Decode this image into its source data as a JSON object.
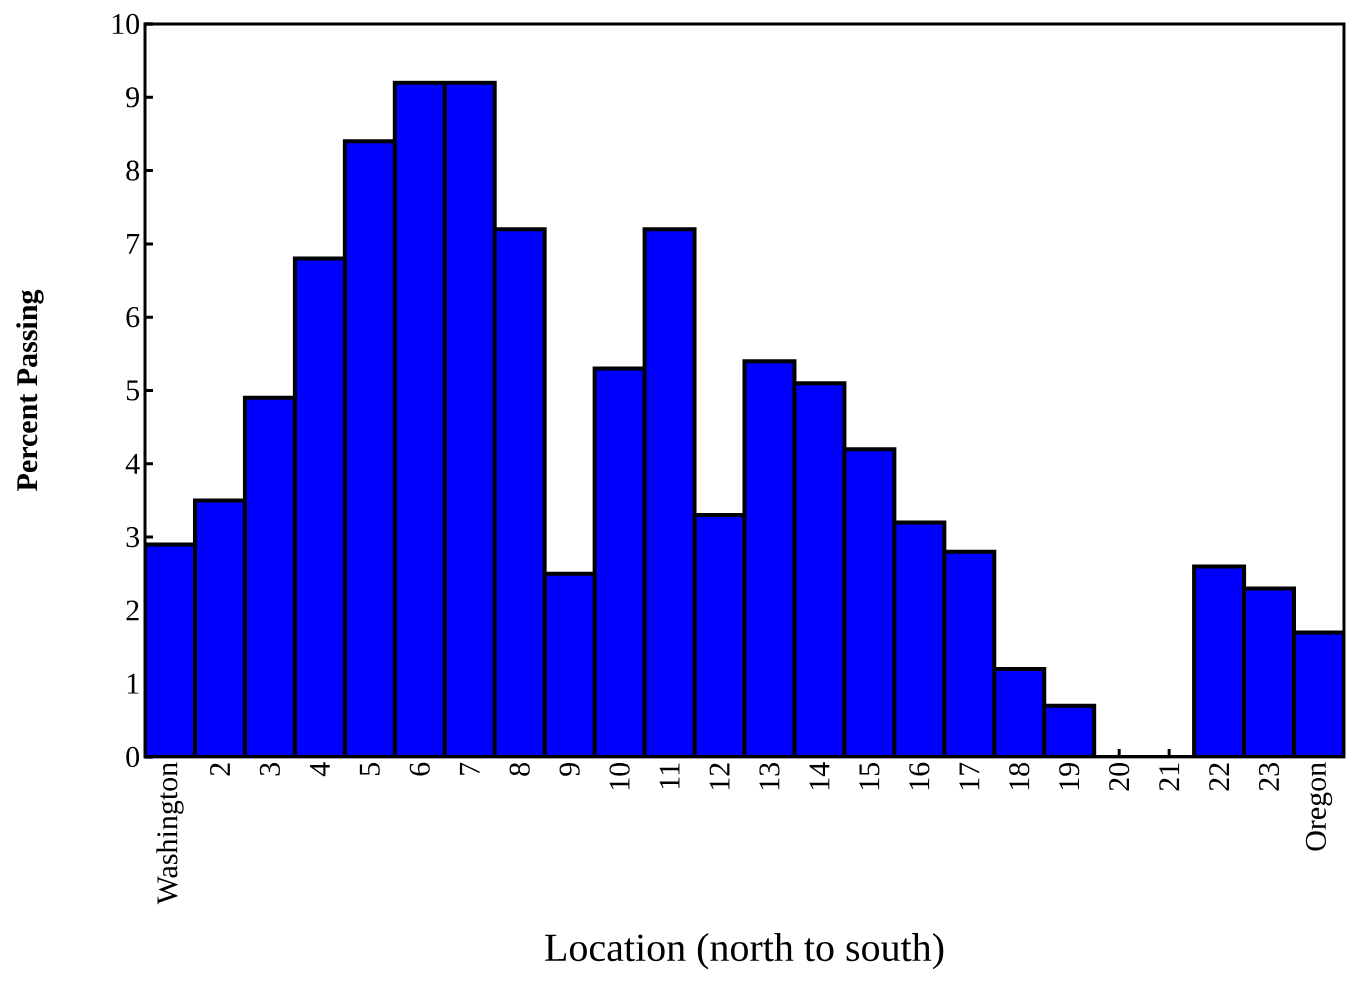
{
  "chart_data": {
    "type": "bar",
    "xlabel": "Location (north to south)",
    "ylabel": "Percent Passing",
    "categories": [
      "Washington",
      "2",
      "3",
      "4",
      "5",
      "6",
      "7",
      "8",
      "9",
      "10",
      "11",
      "12",
      "13",
      "14",
      "15",
      "16",
      "17",
      "18",
      "19",
      "20",
      "21",
      "22",
      "23",
      "Oregon"
    ],
    "values": [
      2.9,
      3.5,
      4.9,
      6.8,
      8.4,
      9.2,
      9.2,
      7.2,
      2.5,
      5.3,
      7.2,
      3.3,
      5.4,
      5.1,
      4.2,
      3.2,
      2.8,
      1.2,
      0.7,
      0,
      0,
      2.6,
      2.3,
      1.7
    ],
    "color": "#0000ff",
    "ylim": [
      0,
      10
    ],
    "yticks": [
      0,
      1,
      2,
      3,
      4,
      5,
      6,
      7,
      8,
      9,
      10
    ]
  }
}
